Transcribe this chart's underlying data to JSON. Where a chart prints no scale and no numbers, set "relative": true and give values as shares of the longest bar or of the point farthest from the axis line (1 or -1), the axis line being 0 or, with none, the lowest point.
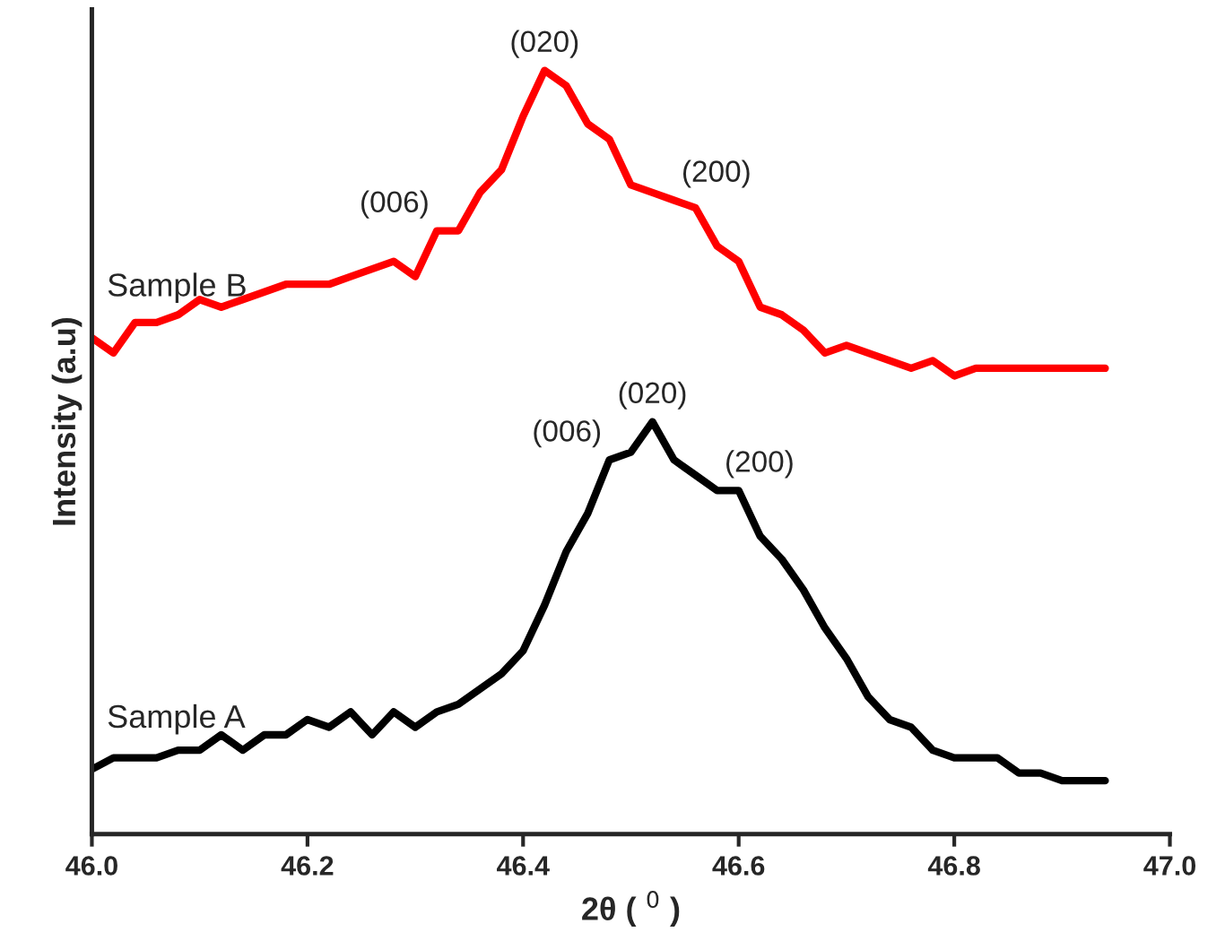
{
  "chart_data": {
    "type": "line",
    "relative": true,
    "xlabel": "2θ ( $^{0}$ )",
    "ylabel": "Intensity (a.u)",
    "x": [
      46.0,
      46.02,
      46.04,
      46.06,
      46.08,
      46.1,
      46.12,
      46.14,
      46.16,
      46.18,
      46.2,
      46.22,
      46.24,
      46.26,
      46.28,
      46.3,
      46.32,
      46.34,
      46.36,
      46.38,
      46.4,
      46.42,
      46.44,
      46.46,
      46.48,
      46.5,
      46.52,
      46.54,
      46.56,
      46.58,
      46.6,
      46.62,
      46.64,
      46.66,
      46.68,
      46.7,
      46.72,
      46.74,
      46.76,
      46.78,
      46.8,
      46.82,
      46.84,
      46.86,
      46.88,
      46.9,
      46.92,
      46.94
    ],
    "series": [
      {
        "name": "Sample B",
        "color": "#ff0000",
        "values": [
          0.65,
          0.63,
          0.67,
          0.67,
          0.68,
          0.7,
          0.69,
          0.7,
          0.71,
          0.72,
          0.72,
          0.72,
          0.73,
          0.74,
          0.75,
          0.73,
          0.79,
          0.79,
          0.84,
          0.87,
          0.94,
          1.0,
          0.98,
          0.93,
          0.91,
          0.85,
          0.84,
          0.83,
          0.82,
          0.77,
          0.75,
          0.69,
          0.68,
          0.66,
          0.63,
          0.64,
          0.63,
          0.62,
          0.61,
          0.62,
          0.6,
          0.61,
          0.61,
          0.61,
          0.61,
          0.61,
          0.61,
          0.61
        ]
      },
      {
        "name": "Sample A",
        "color": "#000000",
        "values": [
          0.085,
          0.1,
          0.1,
          0.1,
          0.11,
          0.11,
          0.13,
          0.11,
          0.13,
          0.13,
          0.15,
          0.14,
          0.16,
          0.13,
          0.16,
          0.14,
          0.16,
          0.17,
          0.19,
          0.21,
          0.24,
          0.3,
          0.37,
          0.42,
          0.49,
          0.5,
          0.54,
          0.49,
          0.47,
          0.45,
          0.45,
          0.39,
          0.36,
          0.32,
          0.27,
          0.23,
          0.18,
          0.15,
          0.14,
          0.11,
          0.1,
          0.1,
          0.1,
          0.08,
          0.08,
          0.07,
          0.07,
          0.07
        ]
      }
    ],
    "annotations": [
      {
        "text": "(020)",
        "x": 46.42,
        "y": 1.0
      },
      {
        "text": "(006)",
        "x": 46.32,
        "y": 0.79
      },
      {
        "text": "(200)",
        "x": 46.54,
        "y": 0.83
      },
      {
        "text": "(020)",
        "x": 46.52,
        "y": 0.54
      },
      {
        "text": "(006)",
        "x": 46.48,
        "y": 0.49
      },
      {
        "text": "(200)",
        "x": 46.58,
        "y": 0.45
      }
    ],
    "xlim": [
      46.0,
      47.0
    ],
    "xticks": [
      {
        "value": 46.0,
        "label": "46.0"
      },
      {
        "value": 46.2,
        "label": "46.2"
      },
      {
        "value": 46.4,
        "label": "46.4"
      },
      {
        "value": 46.6,
        "label": "46.6"
      },
      {
        "value": 46.8,
        "label": "46.8"
      },
      {
        "value": 47.0,
        "label": "47.0"
      }
    ],
    "tick_labels": "x",
    "grid": false,
    "legend": false,
    "marker": "none",
    "line_style": "solid"
  }
}
